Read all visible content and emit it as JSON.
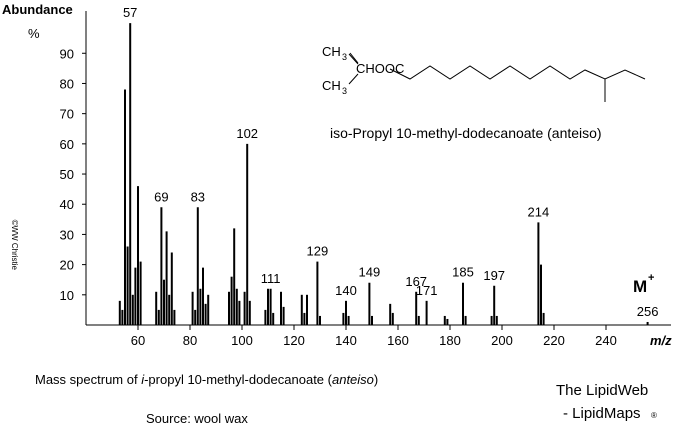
{
  "chart_data": {
    "type": "bar",
    "y_label": "Abundance",
    "y_unit": "%",
    "x_label": "m/z",
    "molecular_ion": {
      "label": "M",
      "sup": "+"
    },
    "compound_name": "iso-Propyl 10-methyl-dodecanoate  (anteiso)",
    "structure_labels": [
      "CH",
      "3",
      "CHOOC",
      "CH",
      "3"
    ],
    "caption": {
      "before": "Mass spectrum of ",
      "italic1": "i",
      "middle": "-propyl 10-methyl-dodecanoate (",
      "italic2": "anteiso",
      "after": ")"
    },
    "source": "Source: wool wax",
    "credit": [
      "The LipidWeb",
      "- LipidMaps",
      "®"
    ],
    "copyright": "©WW Christie",
    "color": "#000000",
    "x": [
      53,
      54,
      55,
      56,
      57,
      58,
      59,
      60,
      61,
      67,
      68,
      69,
      70,
      71,
      72,
      73,
      74,
      81,
      82,
      83,
      84,
      85,
      86,
      87,
      95,
      96,
      97,
      98,
      99,
      101,
      102,
      103,
      109,
      110,
      111,
      112,
      115,
      116,
      123,
      124,
      125,
      129,
      130,
      139,
      140,
      141,
      149,
      150,
      157,
      158,
      167,
      168,
      171,
      178,
      179,
      185,
      186,
      196,
      197,
      198,
      214,
      215,
      216,
      256
    ],
    "values": [
      8,
      5,
      78,
      26,
      100,
      10,
      19,
      46,
      21,
      11,
      5,
      39,
      15,
      31,
      10,
      24,
      5,
      11,
      5,
      39,
      12,
      19,
      7,
      10,
      11,
      16,
      32,
      12,
      8,
      11,
      60,
      8,
      5,
      12,
      12,
      4,
      11,
      6,
      10,
      4,
      10,
      21,
      3,
      4,
      8,
      3,
      14,
      3,
      7,
      4,
      11,
      3,
      8,
      3,
      2,
      14,
      3,
      3,
      13,
      3,
      34,
      20,
      4,
      1
    ],
    "peak_labels": [
      57,
      69,
      83,
      102,
      111,
      129,
      140,
      149,
      167,
      171,
      185,
      197,
      214,
      256
    ],
    "xlim": [
      40,
      265
    ],
    "xticks": [
      60,
      80,
      100,
      120,
      140,
      160,
      180,
      200,
      220,
      240
    ],
    "ylim": [
      0,
      104
    ],
    "yticks": [
      10,
      20,
      30,
      40,
      50,
      60,
      70,
      80,
      90
    ]
  }
}
